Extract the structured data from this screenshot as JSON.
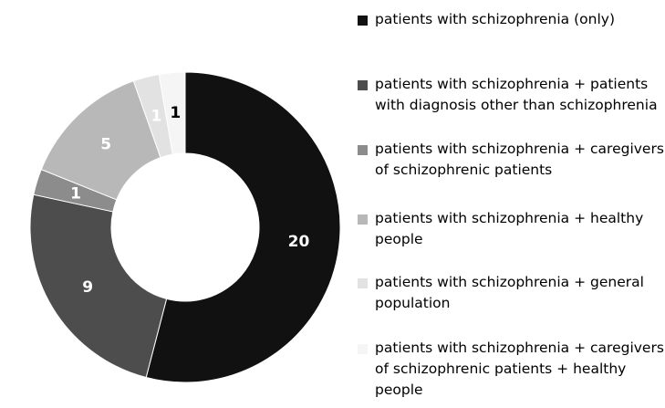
{
  "chart_data": {
    "type": "pie",
    "title": "",
    "donut": true,
    "legend_position": "right",
    "categories": [
      "patients with schizophrenia (only)",
      "patients with schizophrenia + patients with diagnosis other than schizophrenia",
      "patients with schizophrenia + caregivers of schizophrenic patients",
      "patients with schizophrenia + healthy people",
      "patients with schizophrenia + general population",
      "patients with schizophrenia + caregivers of schizophrenic patients + healthy people"
    ],
    "values": [
      20,
      9,
      1,
      5,
      1,
      1
    ],
    "data_labels": [
      "20",
      "9",
      "1",
      "5",
      "1",
      "1"
    ],
    "colors": [
      "#111111",
      "#4d4d4d",
      "#8c8c8c",
      "#b8b8b8",
      "#e2e2e2",
      "#f5f5f5"
    ],
    "label_colors": [
      "#ffffff",
      "#ffffff",
      "#ffffff",
      "#ffffff",
      "#ffffff",
      "#000000"
    ]
  }
}
